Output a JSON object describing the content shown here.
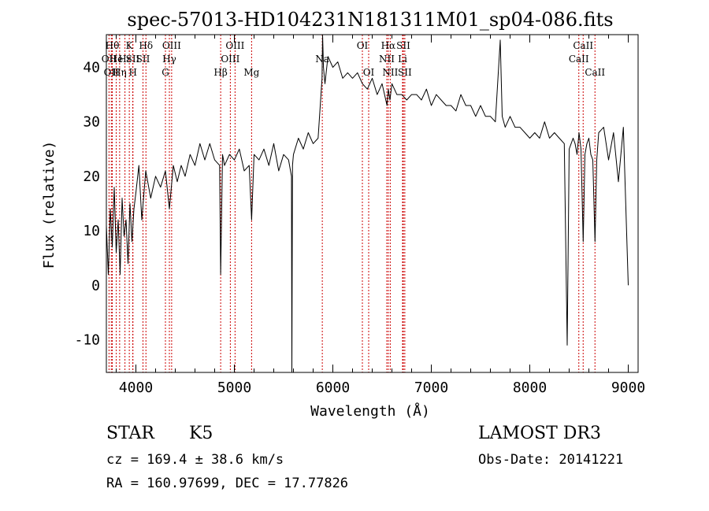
{
  "chart_data": {
    "type": "line",
    "title": "spec-57013-HD104231N181311M01_sp04-086.fits",
    "xlabel": "Wavelength (Å)",
    "ylabel": "Flux (relative)",
    "xlim": [
      3700,
      9100
    ],
    "ylim": [
      -16,
      46
    ],
    "xticks": [
      4000,
      5000,
      6000,
      7000,
      8000,
      9000
    ],
    "yticks": [
      -10,
      0,
      10,
      20,
      30,
      40
    ],
    "series": [
      {
        "name": "flux",
        "x": [
          3700,
          3720,
          3740,
          3760,
          3780,
          3800,
          3820,
          3840,
          3860,
          3880,
          3900,
          3920,
          3940,
          3960,
          3980,
          4000,
          4030,
          4060,
          4100,
          4150,
          4200,
          4250,
          4300,
          4340,
          4380,
          4420,
          4460,
          4500,
          4550,
          4600,
          4650,
          4700,
          4750,
          4800,
          4850,
          4861,
          4880,
          4900,
          4950,
          5000,
          5050,
          5100,
          5150,
          5175,
          5200,
          5250,
          5300,
          5350,
          5400,
          5450,
          5500,
          5550,
          5580,
          5584,
          5590,
          5600,
          5650,
          5700,
          5750,
          5800,
          5850,
          5890,
          5896,
          5905,
          5920,
          5950,
          6000,
          6050,
          6100,
          6150,
          6200,
          6250,
          6300,
          6350,
          6400,
          6450,
          6500,
          6550,
          6563,
          6580,
          6600,
          6650,
          6700,
          6750,
          6800,
          6850,
          6900,
          6950,
          7000,
          7050,
          7100,
          7150,
          7200,
          7250,
          7300,
          7350,
          7400,
          7450,
          7500,
          7550,
          7600,
          7650,
          7700,
          7720,
          7750,
          7800,
          7850,
          7900,
          7950,
          8000,
          8050,
          8100,
          8150,
          8200,
          8250,
          8300,
          8350,
          8380,
          8400,
          8420,
          8440,
          8460,
          8480,
          8500,
          8520,
          8542,
          8560,
          8580,
          8600,
          8620,
          8640,
          8662,
          8680,
          8700,
          8750,
          8800,
          8850,
          8900,
          8950,
          9000
        ],
        "y": [
          11,
          2,
          14,
          7,
          18,
          6,
          12,
          2,
          16,
          9,
          12,
          4,
          15,
          8,
          14,
          17,
          22,
          12,
          21,
          16,
          20,
          18,
          21,
          14,
          22,
          19,
          22,
          20,
          24,
          22,
          26,
          23,
          26,
          23,
          22,
          2,
          24,
          22,
          24,
          23,
          25,
          21,
          22,
          12,
          24,
          23,
          25,
          22,
          26,
          21,
          24,
          23,
          20,
          -16,
          22,
          24,
          27,
          25,
          28,
          26,
          27,
          38,
          46,
          40,
          37,
          42,
          40,
          41,
          38,
          39,
          38,
          39,
          37,
          36,
          38,
          35,
          37,
          33,
          36,
          34,
          37,
          35,
          35,
          34,
          35,
          35,
          34,
          36,
          33,
          35,
          34,
          33,
          33,
          32,
          35,
          33,
          33,
          31,
          33,
          31,
          31,
          30,
          45,
          31,
          29,
          31,
          29,
          29,
          28,
          27,
          28,
          27,
          30,
          27,
          28,
          27,
          26,
          -11,
          25,
          26,
          27,
          26,
          24,
          28,
          25,
          8,
          24,
          26,
          27,
          24,
          23,
          8,
          23,
          28,
          29,
          23,
          28,
          19,
          29,
          0
        ]
      }
    ],
    "lines": [
      {
        "x": 3727,
        "label": "OII",
        "row": 2
      },
      {
        "x": 3750,
        "label": "OII",
        "row": 3
      },
      {
        "x": 3760,
        "label": "Hθ",
        "row": 1
      },
      {
        "x": 3800,
        "label": "He",
        "row": 2
      },
      {
        "x": 3835,
        "label": "Hη",
        "row": 3
      },
      {
        "x": 3889,
        "label": "Hε",
        "row": 2
      },
      {
        "x": 3933,
        "label": "K",
        "row": 1
      },
      {
        "x": 3968,
        "label": "SII",
        "row": 2
      },
      {
        "x": 3970,
        "label": "H",
        "row": 3
      },
      {
        "x": 4102,
        "label": "Hδ",
        "row": 1
      },
      {
        "x": 4072,
        "label": "SII",
        "row": 2
      },
      {
        "x": 4300,
        "label": "G",
        "row": 3
      },
      {
        "x": 4340,
        "label": "Hγ",
        "row": 2
      },
      {
        "x": 4363,
        "label": "OIII",
        "row": 1
      },
      {
        "x": 4861,
        "label": "Hβ",
        "row": 3
      },
      {
        "x": 4959,
        "label": "OIII",
        "row": 2
      },
      {
        "x": 5007,
        "label": "OIII",
        "row": 1
      },
      {
        "x": 5175,
        "label": "Mg",
        "row": 3
      },
      {
        "x": 5893,
        "label": "Na",
        "row": 2
      },
      {
        "x": 6300,
        "label": "OI",
        "row": 1
      },
      {
        "x": 6364,
        "label": "OI",
        "row": 3
      },
      {
        "x": 6548,
        "label": "NII",
        "row": 2
      },
      {
        "x": 6563,
        "label": "Hα",
        "row": 1
      },
      {
        "x": 6583,
        "label": "NII",
        "row": 3
      },
      {
        "x": 6708,
        "label": "Li",
        "row": 2
      },
      {
        "x": 6716,
        "label": "SII",
        "row": 1
      },
      {
        "x": 6731,
        "label": "SII",
        "row": 3
      },
      {
        "x": 8498,
        "label": "CaII",
        "row": 2
      },
      {
        "x": 8542,
        "label": "CaII",
        "row": 1
      },
      {
        "x": 8662,
        "label": "CaII",
        "row": 3
      }
    ]
  },
  "info": {
    "object_class": "STAR",
    "subclass": "K5",
    "survey": "LAMOST DR3",
    "redshift": "cz = 169.4 ± 38.6 km/s",
    "obs_date": "Obs-Date: 20141221",
    "coords": "RA = 160.97699, DEC =  17.77826"
  },
  "colors": {
    "spectrum": "#000000",
    "line_marker": "#cc0000",
    "axis": "#000000"
  }
}
